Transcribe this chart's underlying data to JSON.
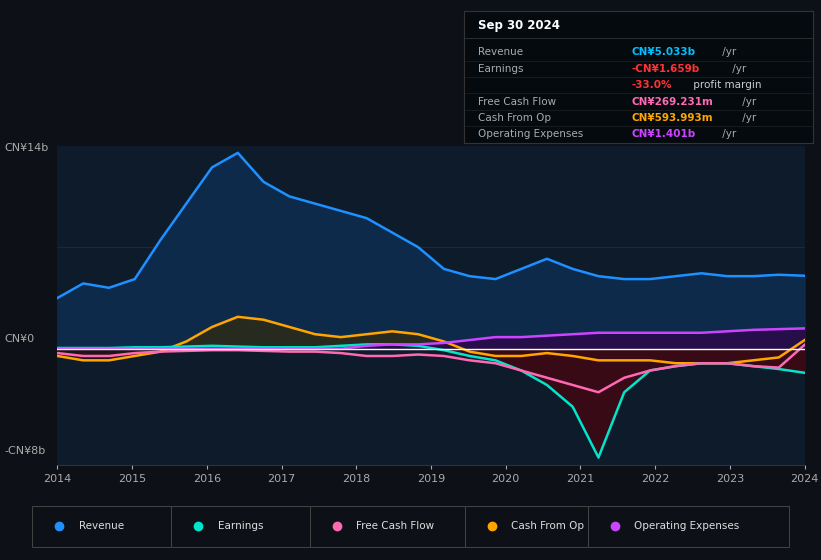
{
  "bg_color": "#0d1117",
  "chart_bg": "#0d1b2a",
  "ylabel_top": "CN¥14b",
  "ylabel_zero": "CN¥0",
  "ylabel_bot": "-CN¥8b",
  "x_labels": [
    "2014",
    "2015",
    "2016",
    "2017",
    "2018",
    "2019",
    "2020",
    "2021",
    "2022",
    "2023",
    "2024"
  ],
  "legend": [
    {
      "label": "Revenue",
      "color": "#1e90ff"
    },
    {
      "label": "Earnings",
      "color": "#00e5cc"
    },
    {
      "label": "Free Cash Flow",
      "color": "#ff69b4"
    },
    {
      "label": "Cash From Op",
      "color": "#ffa500"
    },
    {
      "label": "Operating Expenses",
      "color": "#cc44ff"
    }
  ],
  "revenue": [
    3.5,
    4.5,
    4.2,
    4.8,
    7.5,
    10.0,
    12.5,
    13.5,
    11.5,
    10.5,
    10.0,
    9.5,
    9.0,
    8.0,
    7.0,
    5.5,
    5.0,
    4.8,
    5.5,
    6.2,
    5.5,
    5.0,
    4.8,
    4.8,
    5.0,
    5.2,
    5.0,
    5.0,
    5.1,
    5.03
  ],
  "earnings": [
    0.05,
    0.05,
    0.05,
    0.1,
    0.1,
    0.15,
    0.2,
    0.15,
    0.1,
    0.1,
    0.1,
    0.2,
    0.3,
    0.3,
    0.2,
    -0.1,
    -0.5,
    -0.8,
    -1.5,
    -2.5,
    -4.0,
    -7.5,
    -3.0,
    -1.5,
    -1.2,
    -1.0,
    -1.0,
    -1.2,
    -1.4,
    -1.659
  ],
  "free_cash_flow": [
    -0.3,
    -0.5,
    -0.5,
    -0.3,
    -0.2,
    -0.15,
    -0.1,
    -0.1,
    -0.15,
    -0.2,
    -0.2,
    -0.3,
    -0.5,
    -0.5,
    -0.4,
    -0.5,
    -0.8,
    -1.0,
    -1.5,
    -2.0,
    -2.5,
    -3.0,
    -2.0,
    -1.5,
    -1.2,
    -1.0,
    -1.0,
    -1.2,
    -1.3,
    0.269
  ],
  "cash_from_op": [
    -0.5,
    -0.8,
    -0.8,
    -0.5,
    -0.2,
    0.5,
    1.5,
    2.2,
    2.0,
    1.5,
    1.0,
    0.8,
    1.0,
    1.2,
    1.0,
    0.5,
    -0.2,
    -0.5,
    -0.5,
    -0.3,
    -0.5,
    -0.8,
    -0.8,
    -0.8,
    -1.0,
    -1.0,
    -1.0,
    -0.8,
    -0.6,
    0.594
  ],
  "op_expenses": [
    0.0,
    0.0,
    0.0,
    0.0,
    0.0,
    0.0,
    0.0,
    0.0,
    0.0,
    0.0,
    0.0,
    0.0,
    0.2,
    0.3,
    0.3,
    0.4,
    0.6,
    0.8,
    0.8,
    0.9,
    1.0,
    1.1,
    1.1,
    1.1,
    1.1,
    1.1,
    1.2,
    1.3,
    1.35,
    1.401
  ]
}
